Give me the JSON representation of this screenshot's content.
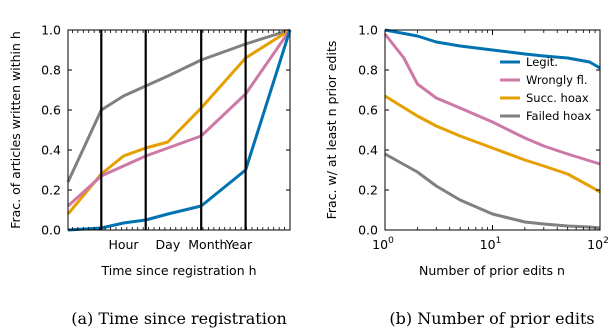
{
  "colors": {
    "legit": "#0072B2",
    "wrongly": "#CC79A7",
    "succ": "#E69F00",
    "failed": "#808080"
  },
  "chart_data": [
    {
      "type": "line",
      "xlabel": "Time since registration h",
      "ylabel": "Frac. of articles written within h",
      "caption": "(a) Time since registration",
      "ylim": [
        0,
        1
      ],
      "y_ticks": [
        "0.0",
        "0.2",
        "0.4",
        "0.6",
        "0.8",
        "1.0"
      ],
      "x_tick_labels": [
        "Hour",
        "Day",
        "Month",
        "Year"
      ],
      "x_marker_positions": [
        0.15,
        0.35,
        0.6,
        0.8
      ],
      "x_positions": [
        0,
        0.15,
        0.25,
        0.35,
        0.45,
        0.6,
        0.8,
        1.0
      ],
      "series": [
        {
          "key": "failed",
          "values": [
            0.24,
            0.6,
            0.67,
            0.72,
            0.77,
            0.85,
            0.93,
            1.0
          ]
        },
        {
          "key": "succ",
          "values": [
            0.08,
            0.28,
            0.37,
            0.41,
            0.44,
            0.61,
            0.86,
            1.0
          ]
        },
        {
          "key": "wrongly",
          "values": [
            0.12,
            0.27,
            0.32,
            0.37,
            0.41,
            0.47,
            0.68,
            1.0
          ]
        },
        {
          "key": "legit",
          "values": [
            0.0,
            0.01,
            0.035,
            0.05,
            0.08,
            0.12,
            0.3,
            1.0
          ]
        }
      ]
    },
    {
      "type": "line",
      "xscale": "log",
      "xlabel": "Number of prior edits n",
      "ylabel": "Frac. w/ at least n prior edits",
      "caption": "(b) Number of prior edits",
      "ylim": [
        0,
        1
      ],
      "xlim": [
        1,
        100
      ],
      "y_ticks": [
        "0.0",
        "0.2",
        "0.4",
        "0.6",
        "0.8",
        "1.0"
      ],
      "x_ticks": [
        {
          "base": "10",
          "exp": "0"
        },
        {
          "base": "10",
          "exp": "1"
        },
        {
          "base": "10",
          "exp": "2"
        }
      ],
      "legend_position": "top-right",
      "series": [
        {
          "key": "legit",
          "name": "Legit.",
          "x": [
            1,
            2,
            3,
            5,
            10,
            20,
            30,
            50,
            80,
            100
          ],
          "values": [
            1.0,
            0.97,
            0.94,
            0.92,
            0.9,
            0.88,
            0.87,
            0.86,
            0.84,
            0.81
          ]
        },
        {
          "key": "wrongly",
          "name": "Wrongly fl.",
          "x": [
            1,
            1.5,
            2,
            3,
            5,
            10,
            20,
            30,
            50,
            100
          ],
          "values": [
            0.98,
            0.86,
            0.73,
            0.66,
            0.61,
            0.54,
            0.46,
            0.42,
            0.38,
            0.33
          ]
        },
        {
          "key": "succ",
          "name": "Succ. hoax",
          "x": [
            1,
            2,
            3,
            5,
            10,
            20,
            30,
            50,
            80,
            100
          ],
          "values": [
            0.67,
            0.57,
            0.52,
            0.47,
            0.41,
            0.35,
            0.32,
            0.28,
            0.22,
            0.19
          ]
        },
        {
          "key": "failed",
          "name": "Failed hoax",
          "x": [
            1,
            2,
            3,
            5,
            10,
            20,
            30,
            50,
            80,
            100
          ],
          "values": [
            0.38,
            0.29,
            0.22,
            0.15,
            0.08,
            0.04,
            0.03,
            0.02,
            0.015,
            0.01
          ]
        }
      ]
    }
  ]
}
